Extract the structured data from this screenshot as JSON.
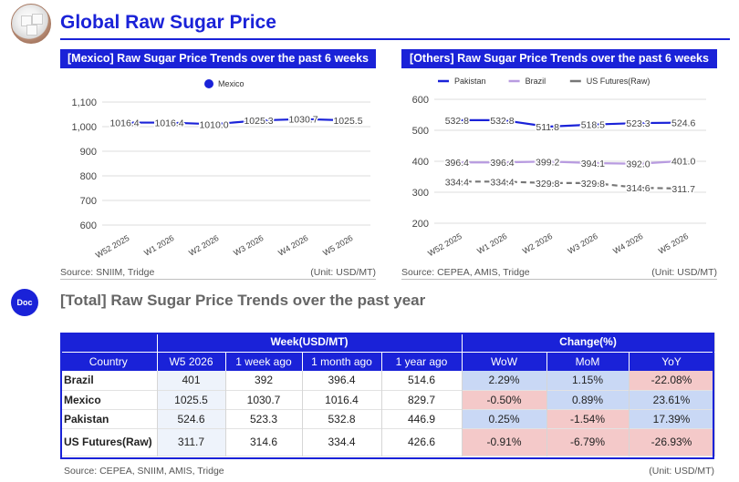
{
  "header": {
    "title": "Global Raw Sugar Price",
    "logo_icon": "sugar-cubes-icon"
  },
  "charts": {
    "left": {
      "panel_title": "[Mexico] Raw Sugar Price Trends over the past 6 weeks",
      "source": "Source: SNIIM, Tridge",
      "unit": "(Unit: USD/MT)"
    },
    "right": {
      "panel_title": "[Others] Raw Sugar Price Trends over the past 6 weeks",
      "source": "Source: CEPEA, AMIS, Tridge",
      "unit": "(Unit: USD/MT)"
    }
  },
  "chart_data": [
    {
      "type": "line",
      "title": "[Mexico] Raw Sugar Price Trends over the past 6 weeks",
      "categories": [
        "W52 2025",
        "W1 2026",
        "W2 2026",
        "W3 2026",
        "W4 2026",
        "W5 2026"
      ],
      "yticks": [
        "1,100",
        "1,000",
        "900",
        "800",
        "700",
        "600"
      ],
      "ylim": [
        600,
        1100
      ],
      "legend_position": "top",
      "series": [
        {
          "name": "Mexico",
          "values": [
            1016.4,
            1016.4,
            1010.0,
            1025.3,
            1030.7,
            1025.5
          ],
          "labels": [
            "1016.4",
            "1016.4",
            "1010.0",
            "1025.3",
            "1030.7",
            "1025.5"
          ],
          "color": "#1a22d8",
          "dash": "solid"
        }
      ]
    },
    {
      "type": "line",
      "title": "[Others] Raw Sugar Price Trends over the past 6 weeks",
      "categories": [
        "W52 2025",
        "W1 2026",
        "W2 2026",
        "W3 2026",
        "W4 2026",
        "W5 2026"
      ],
      "yticks": [
        "600",
        "500",
        "400",
        "300",
        "200"
      ],
      "ylim": [
        200,
        600
      ],
      "legend_position": "top",
      "series": [
        {
          "name": "Pakistan",
          "values": [
            532.8,
            532.8,
            511.8,
            518.5,
            523.3,
            524.6
          ],
          "labels": [
            "532.8",
            "532.8",
            "511.8",
            "518.5",
            "523.3",
            "524.6"
          ],
          "color": "#1a22d8",
          "dash": "solid"
        },
        {
          "name": "Brazil",
          "values": [
            396.4,
            396.4,
            399.2,
            394.1,
            392.0,
            401.0
          ],
          "labels": [
            "396.4",
            "396.4",
            "399.2",
            "394.1",
            "392.0",
            "401.0"
          ],
          "color": "#b89be0",
          "dash": "solid"
        },
        {
          "name": "US Futures(Raw)",
          "values": [
            334.4,
            334.4,
            329.8,
            329.8,
            314.6,
            311.7
          ],
          "labels": [
            "334.4",
            "334.4",
            "329.8",
            "329.8",
            "314.6",
            "311.7"
          ],
          "color": "#777777",
          "dash": "dashed"
        }
      ]
    },
    {
      "type": "table",
      "title": "[Total] Raw Sugar Price Trends over the past year",
      "group_headers": {
        "week": "Week(USD/MT)",
        "change": "Change(%)"
      },
      "columns": [
        "Country",
        "W5 2026",
        "1 week ago",
        "1 month ago",
        "1 year ago",
        "WoW",
        "MoM",
        "YoY"
      ],
      "rows": [
        {
          "country": "Brazil",
          "w5": "401",
          "w1ago": "392",
          "m1ago": "396.4",
          "y1ago": "514.6",
          "wow": "2.29%",
          "mom": "1.15%",
          "yoy": "-22.08%"
        },
        {
          "country": "Mexico",
          "w5": "1025.5",
          "w1ago": "1030.7",
          "m1ago": "1016.4",
          "y1ago": "829.7",
          "wow": "-0.50%",
          "mom": "0.89%",
          "yoy": "23.61%"
        },
        {
          "country": "Pakistan",
          "w5": "524.6",
          "w1ago": "523.3",
          "m1ago": "532.8",
          "y1ago": "446.9",
          "wow": "0.25%",
          "mom": "-1.54%",
          "yoy": "17.39%"
        },
        {
          "country": "US Futures(Raw)",
          "w5": "311.7",
          "w1ago": "314.6",
          "m1ago": "334.4",
          "y1ago": "426.6",
          "wow": "-0.91%",
          "mom": "-6.79%",
          "yoy": "-26.93%"
        }
      ]
    }
  ],
  "total": {
    "doc_label": "Doc",
    "section_title": "[Total] Raw Sugar Price Trends over the past year",
    "source": "Source: CEPEA, SNIIM, AMIS, Tridge",
    "unit": "(Unit: USD/MT)"
  },
  "colors": {
    "accent": "#1a22d8",
    "positive_cell": "#c9d8f5",
    "negative_cell": "#f4c9c9",
    "current_cell": "#eef3fb"
  }
}
